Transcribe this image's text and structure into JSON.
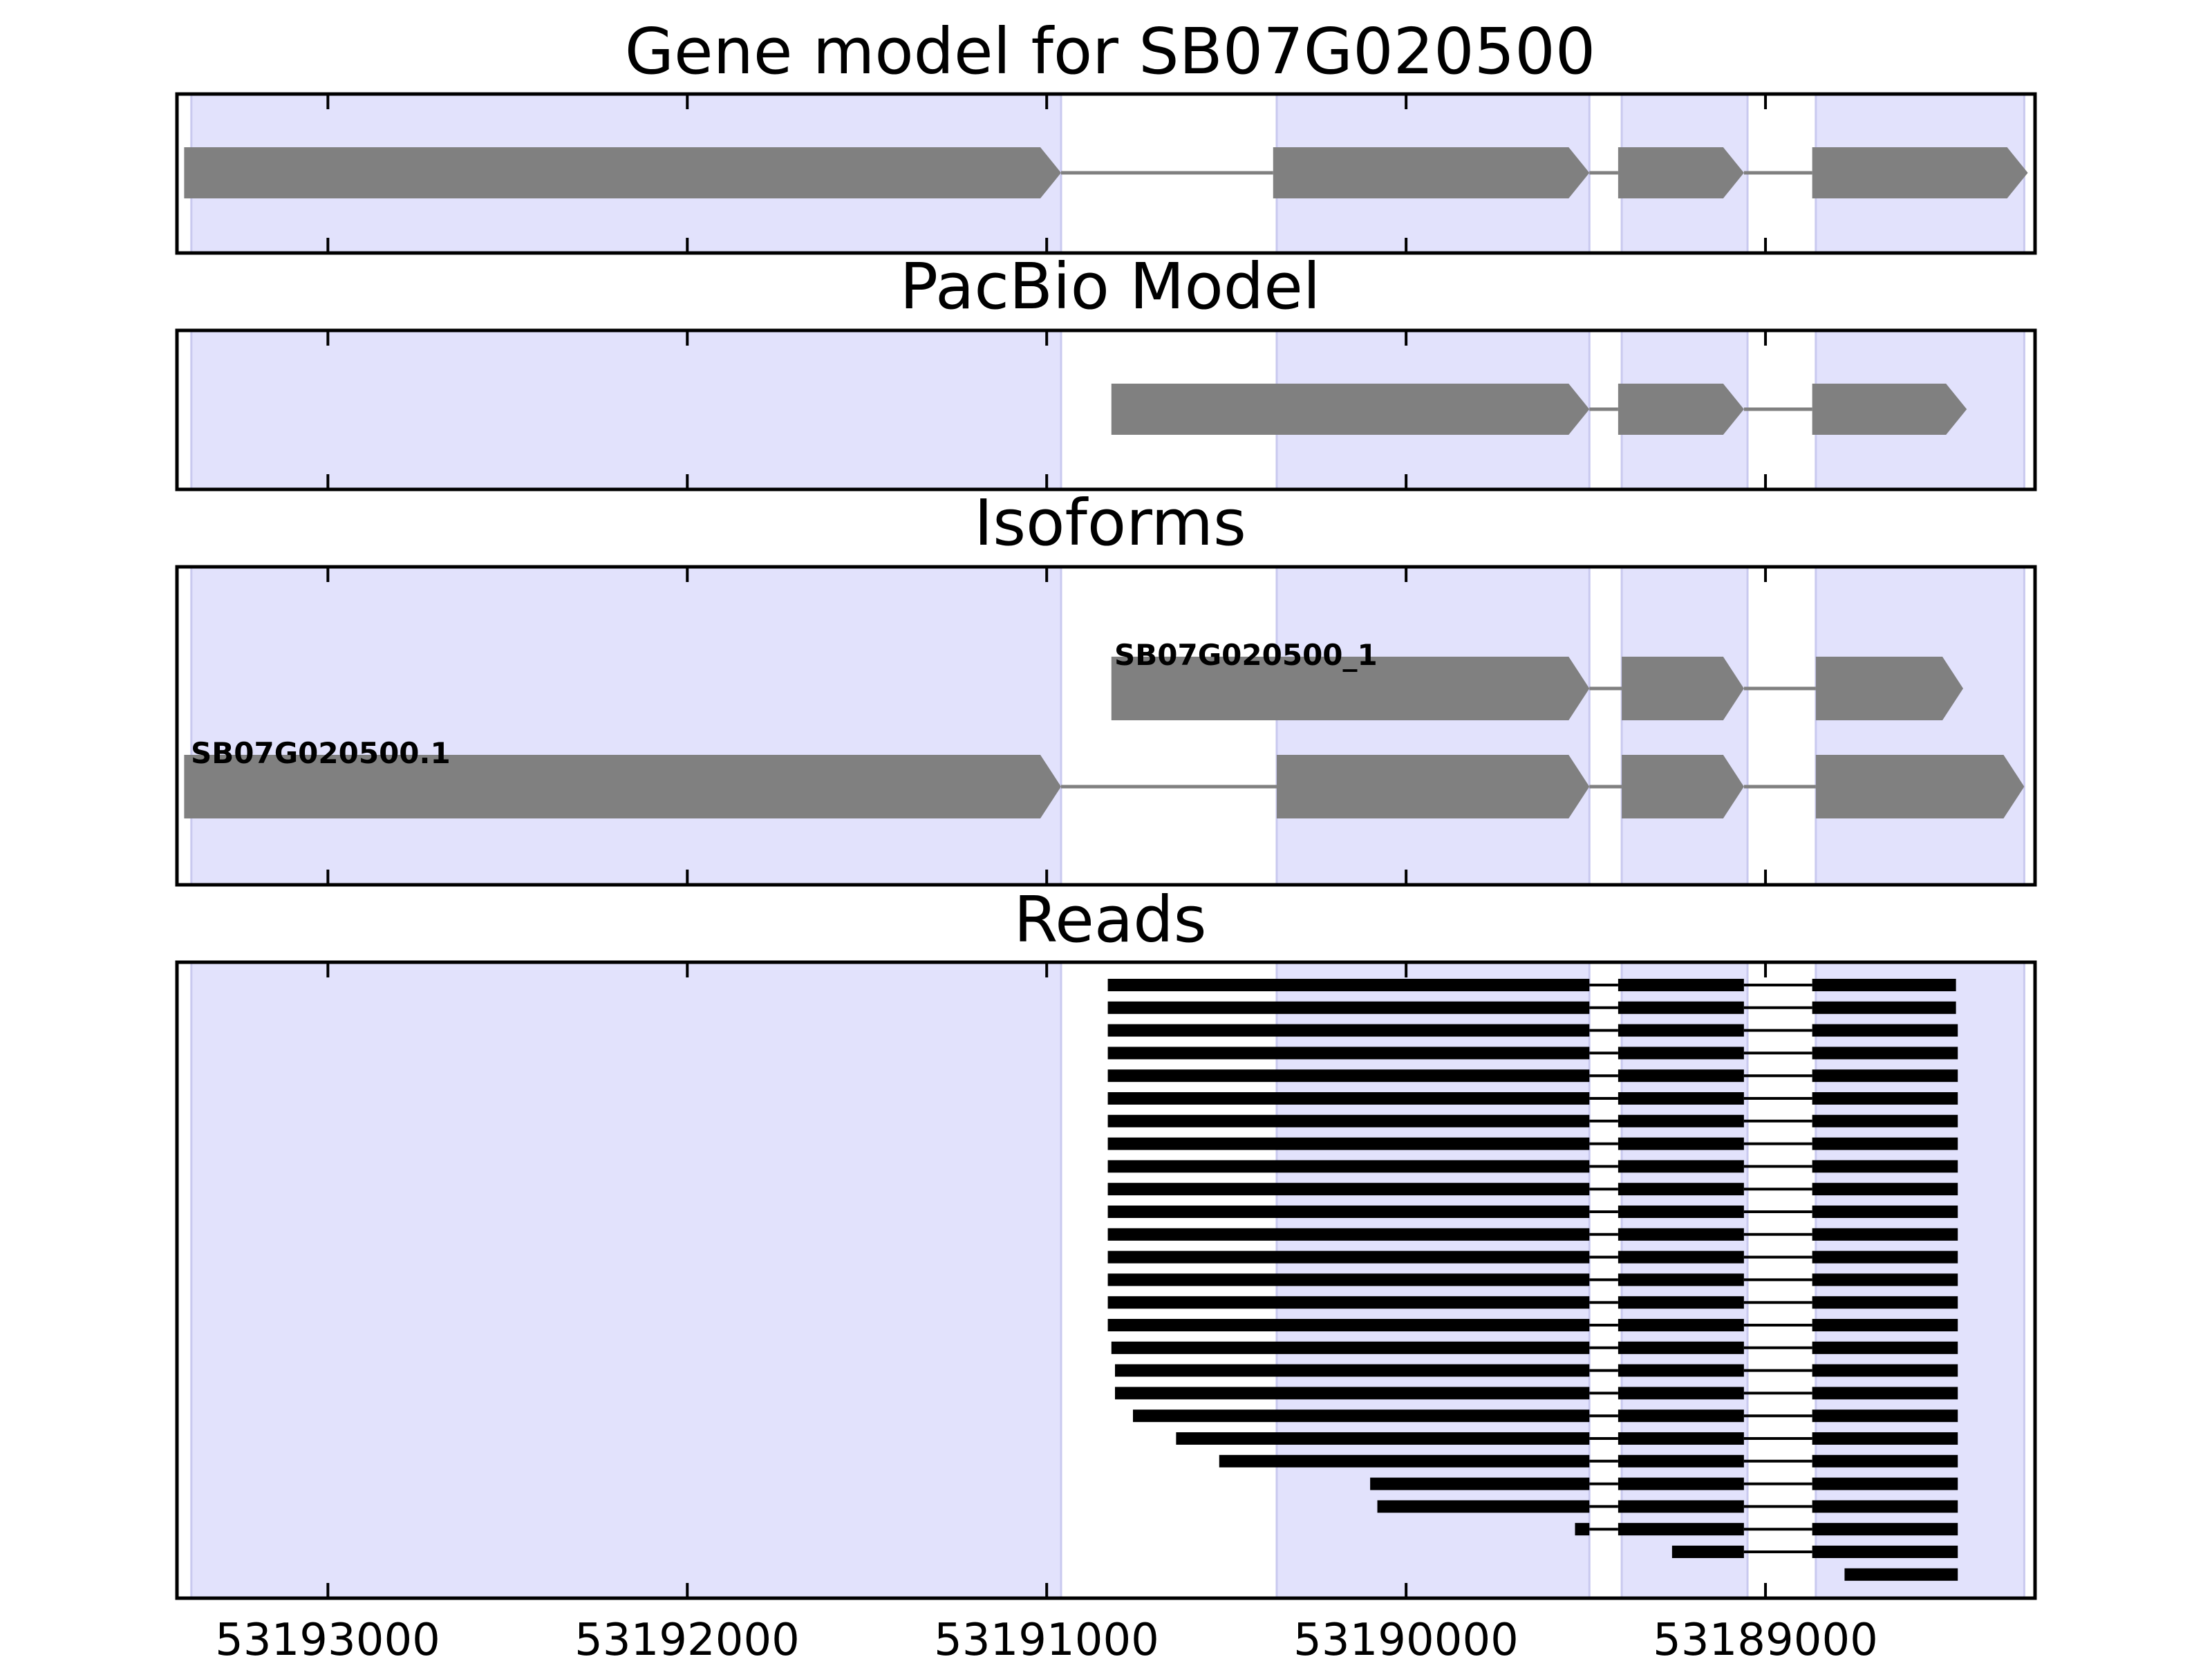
{
  "figure": {
    "titles": {
      "gene_model": "Gene model for SB07G020500",
      "pacbio": "PacBio Model",
      "isoforms": "Isoforms",
      "reads": "Reads"
    },
    "isoform_labels": [
      "SB07G020500_1",
      "SB07G020500.1"
    ],
    "x_axis": {
      "ticks": [
        53193000,
        53192000,
        53191000,
        53190000,
        53189000
      ],
      "tick_labels": [
        "53193000",
        "53192000",
        "53191000",
        "53190000",
        "53189000"
      ],
      "range": [
        53193420,
        53188250
      ],
      "reversed": true
    }
  },
  "colors": {
    "exon_shading": "#e2e2fc",
    "feature": "#808080",
    "intron_line": "#808080",
    "read": "#000000",
    "frame": "#000000"
  },
  "chart_data": {
    "type": "gene-track",
    "xlim": [
      53193420,
      53188250
    ],
    "exon_regions": [
      [
        53193380,
        53190960
      ],
      [
        53190360,
        53189490
      ],
      [
        53189400,
        53189050
      ],
      [
        53188860,
        53188280
      ]
    ],
    "gene_model": {
      "exons": [
        [
          53193400,
          53190960
        ],
        [
          53190370,
          53189490
        ],
        [
          53189410,
          53189060
        ],
        [
          53188870,
          53188270
        ]
      ]
    },
    "pacbio_model": {
      "exons": [
        [
          53190820,
          53189490
        ],
        [
          53189410,
          53189060
        ],
        [
          53188870,
          53188440
        ]
      ]
    },
    "isoforms": [
      {
        "name": "SB07G020500_1",
        "exons": [
          [
            53190820,
            53189490
          ],
          [
            53189400,
            53189060
          ],
          [
            53188860,
            53188450
          ]
        ]
      },
      {
        "name": "SB07G020500.1",
        "exons": [
          [
            53193400,
            53190960
          ],
          [
            53190360,
            53189490
          ],
          [
            53189400,
            53189060
          ],
          [
            53188860,
            53188280
          ]
        ]
      }
    ],
    "reads": [
      {
        "exons": [
          [
            53190830,
            53189490
          ],
          [
            53189410,
            53189060
          ],
          [
            53188870,
            53188470
          ]
        ]
      },
      {
        "exons": [
          [
            53190830,
            53189490
          ],
          [
            53189410,
            53189060
          ],
          [
            53188870,
            53188470
          ]
        ]
      },
      {
        "exons": [
          [
            53190830,
            53189490
          ],
          [
            53189410,
            53189060
          ],
          [
            53188870,
            53188465
          ]
        ]
      },
      {
        "exons": [
          [
            53190830,
            53189490
          ],
          [
            53189410,
            53189060
          ],
          [
            53188870,
            53188465
          ]
        ]
      },
      {
        "exons": [
          [
            53190830,
            53189490
          ],
          [
            53189410,
            53189060
          ],
          [
            53188870,
            53188465
          ]
        ]
      },
      {
        "exons": [
          [
            53190830,
            53189490
          ],
          [
            53189410,
            53189060
          ],
          [
            53188870,
            53188465
          ]
        ]
      },
      {
        "exons": [
          [
            53190830,
            53189490
          ],
          [
            53189410,
            53189060
          ],
          [
            53188870,
            53188465
          ]
        ]
      },
      {
        "exons": [
          [
            53190830,
            53189490
          ],
          [
            53189410,
            53189060
          ],
          [
            53188870,
            53188465
          ]
        ]
      },
      {
        "exons": [
          [
            53190830,
            53189490
          ],
          [
            53189410,
            53189060
          ],
          [
            53188870,
            53188465
          ]
        ]
      },
      {
        "exons": [
          [
            53190830,
            53189490
          ],
          [
            53189410,
            53189060
          ],
          [
            53188870,
            53188465
          ]
        ]
      },
      {
        "exons": [
          [
            53190830,
            53189490
          ],
          [
            53189410,
            53189060
          ],
          [
            53188870,
            53188465
          ]
        ]
      },
      {
        "exons": [
          [
            53190830,
            53189490
          ],
          [
            53189410,
            53189060
          ],
          [
            53188870,
            53188465
          ]
        ]
      },
      {
        "exons": [
          [
            53190830,
            53189490
          ],
          [
            53189410,
            53189060
          ],
          [
            53188870,
            53188465
          ]
        ]
      },
      {
        "exons": [
          [
            53190830,
            53189490
          ],
          [
            53189410,
            53189060
          ],
          [
            53188870,
            53188465
          ]
        ]
      },
      {
        "exons": [
          [
            53190830,
            53189490
          ],
          [
            53189410,
            53189060
          ],
          [
            53188870,
            53188465
          ]
        ]
      },
      {
        "exons": [
          [
            53190830,
            53189490
          ],
          [
            53189410,
            53189060
          ],
          [
            53188870,
            53188465
          ]
        ]
      },
      {
        "exons": [
          [
            53190820,
            53189490
          ],
          [
            53189410,
            53189060
          ],
          [
            53188870,
            53188465
          ]
        ]
      },
      {
        "exons": [
          [
            53190810,
            53189490
          ],
          [
            53189410,
            53189060
          ],
          [
            53188870,
            53188465
          ]
        ]
      },
      {
        "exons": [
          [
            53190810,
            53189490
          ],
          [
            53189410,
            53189060
          ],
          [
            53188870,
            53188465
          ]
        ]
      },
      {
        "exons": [
          [
            53190760,
            53189490
          ],
          [
            53189410,
            53189060
          ],
          [
            53188870,
            53188465
          ]
        ]
      },
      {
        "exons": [
          [
            53190640,
            53189490
          ],
          [
            53189410,
            53189060
          ],
          [
            53188870,
            53188465
          ]
        ]
      },
      {
        "exons": [
          [
            53190520,
            53189490
          ],
          [
            53189410,
            53189060
          ],
          [
            53188870,
            53188465
          ]
        ]
      },
      {
        "exons": [
          [
            53190100,
            53189490
          ],
          [
            53189410,
            53189060
          ],
          [
            53188870,
            53188465
          ]
        ]
      },
      {
        "exons": [
          [
            53190080,
            53189490
          ],
          [
            53189410,
            53189060
          ],
          [
            53188870,
            53188465
          ]
        ]
      },
      {
        "exons": [
          [
            53189530,
            53189490
          ],
          [
            53189410,
            53189060
          ],
          [
            53188870,
            53188465
          ]
        ]
      },
      {
        "exons": [
          [
            53189260,
            53189060
          ],
          [
            53188870,
            53188465
          ]
        ]
      },
      {
        "exons": [
          [
            53188780,
            53188465
          ]
        ]
      }
    ]
  }
}
